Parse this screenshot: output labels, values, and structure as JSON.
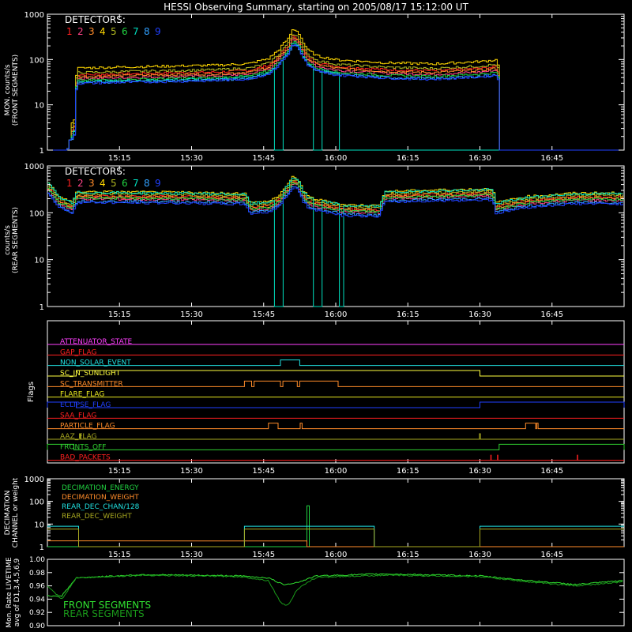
{
  "chart_data": {
    "title": "HESSI Observing Summary, starting on 2005/08/17 15:12:00 UT",
    "time_ticks": [
      "15:15",
      "15:30",
      "15:45",
      "16:00",
      "16:15",
      "16:30",
      "16:45"
    ],
    "time_tick_minutes": [
      195,
      210,
      225,
      240,
      255,
      270,
      285
    ],
    "panels": [
      {
        "id": "front",
        "type": "line",
        "ylabel": [
          "MON. counts/s",
          "(FRONT SEGMENTS)"
        ],
        "y_scale": "log",
        "ylim": [
          1,
          1000
        ],
        "yticks": [
          "1",
          "10",
          "100",
          "1000"
        ],
        "legend_title": "DETECTORS:",
        "legend_numbers": [
          "1",
          "2",
          "3",
          "4",
          "5",
          "6",
          "7",
          "8",
          "9"
        ],
        "colors": [
          "#ff2020",
          "#ff4488",
          "#ff8c2a",
          "#ffd700",
          "#b0b820",
          "#20d040",
          "#00e0c0",
          "#30a0ff",
          "#2040ff"
        ],
        "series_shape": {
          "x": [
            184,
            185.5,
            186,
            195,
            205,
            215,
            222,
            226,
            228,
            230,
            231,
            232,
            233,
            234,
            236,
            240,
            250,
            260,
            270,
            273.5,
            274
          ],
          "baseline": [
            1,
            3,
            38,
            40,
            42,
            44,
            48,
            62,
            95,
            170,
            280,
            240,
            140,
            95,
            70,
            58,
            50,
            47,
            53,
            58,
            1
          ]
        },
        "series_factors": [
          1.2,
          1.0,
          1.1,
          1.7,
          1.35,
          0.9,
          0.85,
          0.8,
          0.78
        ],
        "cyan_dropouts": [
          [
            227,
            229
          ],
          [
            235,
            237
          ],
          [
            240.5,
            274
          ]
        ]
      },
      {
        "id": "rear",
        "type": "line",
        "ylabel": [
          "counts/s",
          "(REAR SEGMENTS)"
        ],
        "y_scale": "log",
        "ylim": [
          1,
          1000
        ],
        "yticks": [
          "1",
          "10",
          "100",
          "1000"
        ],
        "legend_title": "DETECTORS:",
        "legend_numbers": [
          "1",
          "2",
          "3",
          "4",
          "5",
          "6",
          "7",
          "8",
          "9"
        ],
        "series_shape": {
          "x": [
            180,
            182,
            185,
            186,
            195,
            210,
            221,
            222,
            226,
            228,
            230,
            231,
            232,
            233,
            234,
            236,
            240,
            241,
            249,
            250,
            260,
            270,
            272.5,
            273,
            280,
            290
          ],
          "baseline": [
            320,
            170,
            120,
            210,
            205,
            200,
            190,
            120,
            130,
            170,
            300,
            450,
            380,
            220,
            165,
            140,
            120,
            110,
            105,
            210,
            225,
            235,
            240,
            120,
            165,
            195
          ]
        },
        "series_factors": [
          1.1,
          0.95,
          1.05,
          1.35,
          1.2,
          1.0,
          1.3,
          0.85,
          0.8
        ],
        "cyan_dropouts": [
          [
            227,
            229
          ],
          [
            235,
            237
          ],
          [
            240.5,
            241.5
          ]
        ]
      },
      {
        "id": "flags",
        "type": "step",
        "ylabel": "Flags",
        "flags": [
          {
            "label": "ATTENUATOR_STATE",
            "color": "#ff40ff",
            "steps": []
          },
          {
            "label": "GAP_FLAG",
            "color": "#ff2020",
            "steps": []
          },
          {
            "label": "NON_SOLAR_EVENT",
            "color": "#20e0e0",
            "steps": [
              [
                228.5,
                232.5
              ]
            ]
          },
          {
            "label": "SC_IN_SUNLIGHT",
            "color": "#ffff40",
            "steps": [
              [
                186,
                270
              ]
            ]
          },
          {
            "label": "SC_TRANSMITTER",
            "color": "#ff8c2a",
            "steps": [
              [
                221,
                222.5
              ],
              [
                223,
                228.5
              ],
              [
                229,
                232
              ],
              [
                232.5,
                240.5
              ]
            ]
          },
          {
            "label": "FLARE_FLAG",
            "color": "#e8e820",
            "steps": []
          },
          {
            "label": "ECLIPSE_FLAG",
            "color": "#2040ff",
            "steps": [
              [
                180,
                186
              ],
              [
                270,
                300
              ]
            ]
          },
          {
            "label": "SAA_FLAG",
            "color": "#ff2020",
            "steps": []
          },
          {
            "label": "PARTICLE_FLAG",
            "color": "#ff8c2a",
            "steps": [
              [
                226,
                228
              ],
              [
                232.6,
                233
              ],
              [
                279.5,
                281.6
              ],
              [
                281.8,
                282.1
              ]
            ]
          },
          {
            "label": "AAZ_FLAG",
            "color": "#a8a820",
            "steps": [
              [
                186.8,
                187
              ],
              [
                269.9,
                270.1
              ]
            ]
          },
          {
            "label": "FRONTS_OFF",
            "color": "#30d030",
            "steps": [
              [
                180,
                185.5
              ],
              [
                274,
                300
              ]
            ]
          },
          {
            "label": "BAD_PACKETS",
            "color": "#ff2020",
            "spikes": [
              272.3,
              273.7,
              290.3
            ]
          }
        ]
      },
      {
        "id": "decimation",
        "type": "step",
        "ylabel": [
          "DECIMATION",
          "CHANNEL or weight"
        ],
        "y_scale": "log",
        "ylim": [
          1,
          1000
        ],
        "yticks": [
          "1",
          "10",
          "100",
          "1000"
        ],
        "series": [
          {
            "name": "DECIMATION_ENERGY",
            "color": "#20d040"
          },
          {
            "name": "DECIMATION_WEIGHT",
            "color": "#ff8c2a"
          },
          {
            "name": "REAR_DEC_CHAN/128",
            "color": "#20e0e0"
          },
          {
            "name": "REAR_DEC_WEIGHT",
            "color": "#a8a820"
          }
        ]
      },
      {
        "id": "livetime",
        "type": "line",
        "ylabel": [
          "Mon. Rate LIVETIME",
          "avg of D1,3,4,5,6,9"
        ],
        "ylim": [
          0.9,
          1.0
        ],
        "yticks": [
          "0.90",
          "0.92",
          "0.94",
          "0.96",
          "0.98",
          "1.00"
        ],
        "series": [
          {
            "name": "FRONT SEGMENTS",
            "color": "#30e030"
          },
          {
            "name": "REAR SEGMENTS",
            "color": "#1a9a1a"
          }
        ]
      }
    ]
  }
}
